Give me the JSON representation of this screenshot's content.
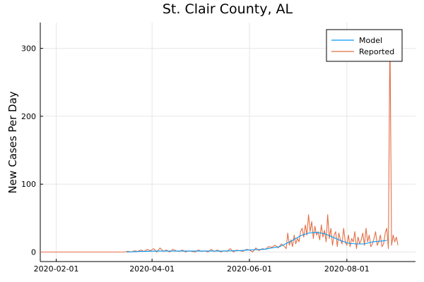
{
  "chart_data": {
    "type": "line",
    "title": "St. Clair County, AL",
    "xlabel": "",
    "ylabel": "New Cases Per Day",
    "x_type": "date",
    "xlim": [
      "2020-01-22",
      "2020-09-13"
    ],
    "ylim": [
      -14,
      338
    ],
    "x_ticks": [
      "2020-02-01",
      "2020-04-01",
      "2020-06-01",
      "2020-08-01"
    ],
    "y_ticks": [
      0,
      100,
      200,
      300
    ],
    "grid": true,
    "legend_position": "top-right",
    "series": [
      {
        "name": "Model",
        "color": "#009AFA",
        "x": [
          "2020-03-16",
          "2020-03-25",
          "2020-04-05",
          "2020-04-15",
          "2020-04-25",
          "2020-05-05",
          "2020-05-15",
          "2020-05-25",
          "2020-06-01",
          "2020-06-10",
          "2020-06-20",
          "2020-06-27",
          "2020-07-03",
          "2020-07-08",
          "2020-07-13",
          "2020-07-18",
          "2020-07-23",
          "2020-07-28",
          "2020-08-02",
          "2020-08-07",
          "2020-08-12",
          "2020-08-17",
          "2020-08-22",
          "2020-08-26"
        ],
        "values": [
          0,
          1,
          1.5,
          1.5,
          1.5,
          1.5,
          1.5,
          2,
          3,
          4,
          8,
          16,
          24,
          28,
          29,
          27,
          22,
          17,
          13,
          12,
          12,
          15,
          16,
          17
        ]
      },
      {
        "name": "Reported",
        "color": "#E26F46",
        "x": [
          "2020-01-22",
          "2020-03-14",
          "2020-03-17",
          "2020-03-19",
          "2020-03-21",
          "2020-03-23",
          "2020-03-25",
          "2020-03-27",
          "2020-03-29",
          "2020-03-31",
          "2020-04-02",
          "2020-04-04",
          "2020-04-06",
          "2020-04-08",
          "2020-04-10",
          "2020-04-12",
          "2020-04-14",
          "2020-04-16",
          "2020-04-18",
          "2020-04-20",
          "2020-04-22",
          "2020-04-24",
          "2020-04-26",
          "2020-04-28",
          "2020-04-30",
          "2020-05-02",
          "2020-05-04",
          "2020-05-06",
          "2020-05-08",
          "2020-05-10",
          "2020-05-12",
          "2020-05-14",
          "2020-05-16",
          "2020-05-18",
          "2020-05-20",
          "2020-05-22",
          "2020-05-24",
          "2020-05-26",
          "2020-05-28",
          "2020-05-30",
          "2020-06-01",
          "2020-06-03",
          "2020-06-05",
          "2020-06-07",
          "2020-06-09",
          "2020-06-11",
          "2020-06-13",
          "2020-06-15",
          "2020-06-17",
          "2020-06-19",
          "2020-06-21",
          "2020-06-23",
          "2020-06-24",
          "2020-06-25",
          "2020-06-26",
          "2020-06-27",
          "2020-06-28",
          "2020-06-29",
          "2020-06-30",
          "2020-07-01",
          "2020-07-02",
          "2020-07-03",
          "2020-07-04",
          "2020-07-05",
          "2020-07-06",
          "2020-07-07",
          "2020-07-08",
          "2020-07-09",
          "2020-07-10",
          "2020-07-11",
          "2020-07-12",
          "2020-07-13",
          "2020-07-14",
          "2020-07-15",
          "2020-07-16",
          "2020-07-17",
          "2020-07-18",
          "2020-07-19",
          "2020-07-20",
          "2020-07-21",
          "2020-07-22",
          "2020-07-23",
          "2020-07-24",
          "2020-07-25",
          "2020-07-26",
          "2020-07-27",
          "2020-07-28",
          "2020-07-29",
          "2020-07-30",
          "2020-07-31",
          "2020-08-01",
          "2020-08-02",
          "2020-08-03",
          "2020-08-04",
          "2020-08-05",
          "2020-08-06",
          "2020-08-07",
          "2020-08-08",
          "2020-08-09",
          "2020-08-10",
          "2020-08-11",
          "2020-08-12",
          "2020-08-13",
          "2020-08-14",
          "2020-08-15",
          "2020-08-16",
          "2020-08-17",
          "2020-08-18",
          "2020-08-19",
          "2020-08-20",
          "2020-08-21",
          "2020-08-22",
          "2020-08-23",
          "2020-08-24",
          "2020-08-25",
          "2020-08-26",
          "2020-08-27",
          "2020-08-28",
          "2020-08-29",
          "2020-08-30",
          "2020-08-31",
          "2020-09-01",
          "2020-09-02"
        ],
        "values": [
          0,
          0,
          1,
          0,
          2,
          1,
          3,
          1,
          4,
          2,
          5,
          0,
          6,
          1,
          3,
          0,
          4,
          2,
          1,
          3,
          0,
          2,
          1,
          0,
          3,
          1,
          2,
          0,
          4,
          1,
          3,
          0,
          2,
          1,
          5,
          0,
          3,
          2,
          1,
          4,
          3,
          0,
          6,
          2,
          5,
          4,
          8,
          7,
          10,
          6,
          12,
          8,
          5,
          28,
          10,
          18,
          8,
          25,
          12,
          20,
          15,
          30,
          35,
          22,
          40,
          25,
          55,
          30,
          45,
          20,
          38,
          25,
          30,
          18,
          40,
          22,
          32,
          15,
          55,
          20,
          35,
          10,
          25,
          30,
          8,
          28,
          18,
          12,
          35,
          15,
          10,
          25,
          8,
          20,
          15,
          30,
          5,
          22,
          12,
          18,
          28,
          10,
          35,
          15,
          25,
          8,
          12,
          20,
          30,
          10,
          15,
          25,
          8,
          12,
          28,
          35,
          5,
          325,
          10,
          25,
          15,
          22,
          10
        ]
      }
    ]
  }
}
